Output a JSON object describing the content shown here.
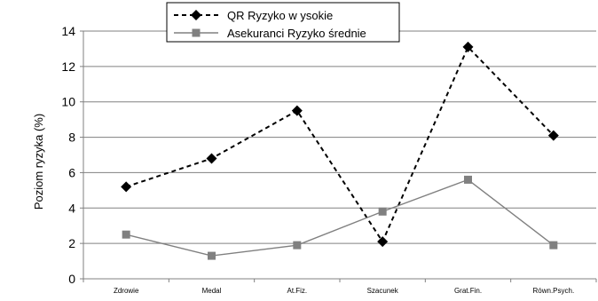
{
  "chart_data": {
    "type": "line",
    "categories": [
      "Zdrowie",
      "Medal",
      "At.Fiz.",
      "Szacunek",
      "Grat.Fin.",
      "Równ.Psych."
    ],
    "series": [
      {
        "name": "QR Ryzyko w ysokie",
        "values": [
          5.2,
          6.8,
          9.5,
          2.1,
          13.1,
          8.1
        ],
        "color": "#000000",
        "style": "dashed",
        "marker": "diamond"
      },
      {
        "name": "Asekuranci Ryzyko średnie",
        "values": [
          2.5,
          1.3,
          1.9,
          3.8,
          5.6,
          1.9
        ],
        "color": "#808080",
        "style": "solid",
        "marker": "square"
      }
    ],
    "title": "",
    "xlabel": "",
    "ylabel": "Poziom ryzyka (%)",
    "ylim": [
      0,
      14
    ],
    "yticks": [
      0,
      2,
      4,
      6,
      8,
      10,
      12,
      14
    ],
    "grid": true,
    "legend_position": "top-center"
  }
}
